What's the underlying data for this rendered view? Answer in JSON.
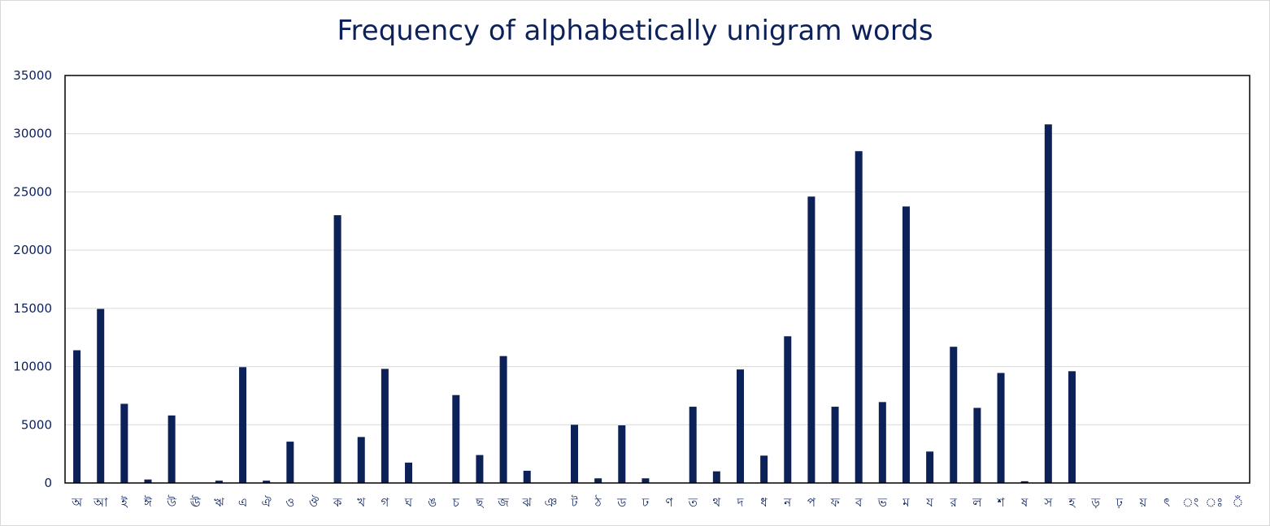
{
  "chart_data": {
    "type": "bar",
    "title": "Frequency of alphabetically unigram words",
    "xlabel": "",
    "ylabel": "",
    "ylim": [
      0,
      35000
    ],
    "yticks": [
      0,
      5000,
      10000,
      15000,
      20000,
      25000,
      30000,
      35000
    ],
    "grid": true,
    "bar_color": "#0d2159",
    "categories": [
      "অ",
      "আ",
      "ই",
      "ঈ",
      "উ",
      "ঊ",
      "ঋ",
      "এ",
      "ঐ",
      "ও",
      "ঔ",
      "ক",
      "খ",
      "গ",
      "ঘ",
      "ঙ",
      "চ",
      "ছ",
      "জ",
      "ঝ",
      "ঞ",
      "ট",
      "ঠ",
      "ড",
      "ঢ",
      "ণ",
      "ত",
      "থ",
      "দ",
      "ধ",
      "ন",
      "প",
      "ফ",
      "ব",
      "ভ",
      "ম",
      "য",
      "র",
      "ল",
      "শ",
      "ষ",
      "স",
      "হ",
      "ড়",
      "ঢ়",
      "য়",
      "ৎ",
      "ং",
      "ঃ",
      "ঁ"
    ],
    "values": [
      11400,
      14950,
      6800,
      300,
      5800,
      0,
      200,
      9950,
      200,
      3550,
      0,
      23000,
      3950,
      9800,
      1750,
      0,
      7550,
      2400,
      10900,
      1050,
      0,
      5000,
      400,
      4950,
      400,
      0,
      6550,
      1000,
      9750,
      2350,
      12600,
      24600,
      6550,
      28500,
      6950,
      23750,
      2700,
      11700,
      6450,
      9450,
      150,
      30800,
      9600,
      0,
      0,
      0,
      0,
      0,
      0,
      0
    ]
  }
}
